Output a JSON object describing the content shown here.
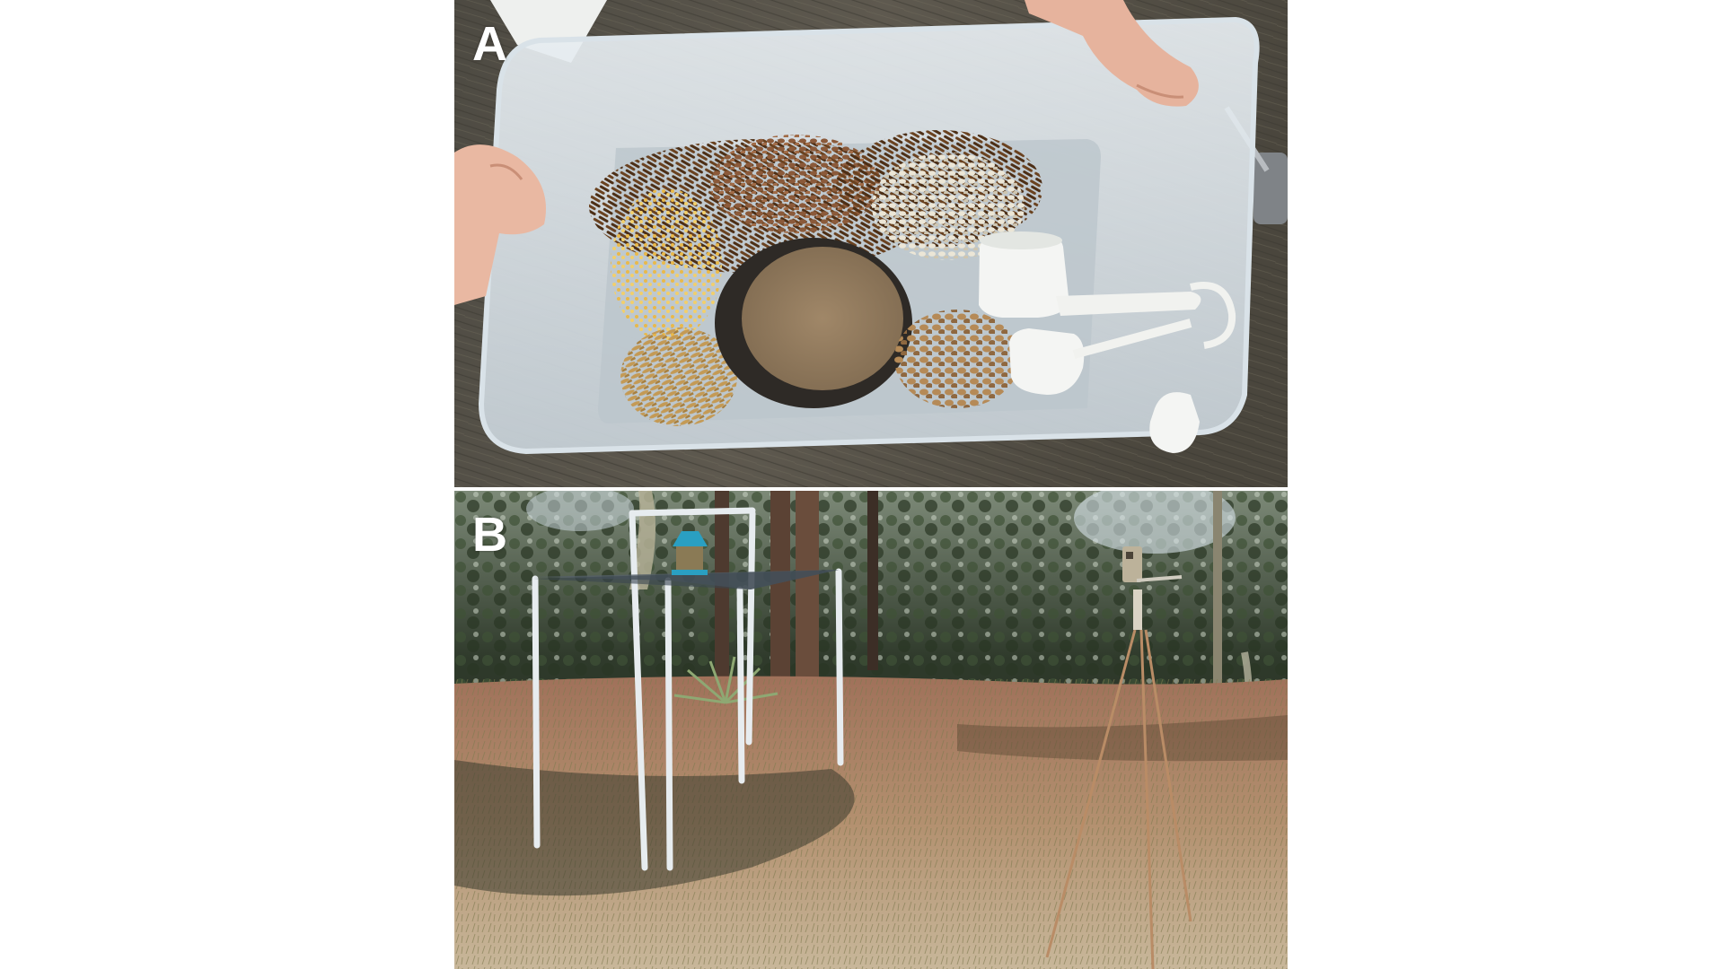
{
  "figure": {
    "panels": [
      {
        "label": "A",
        "content": "seed-mix-tub-photo"
      },
      {
        "label": "B",
        "content": "feeder-and-trail-camera-field-photo"
      }
    ]
  }
}
